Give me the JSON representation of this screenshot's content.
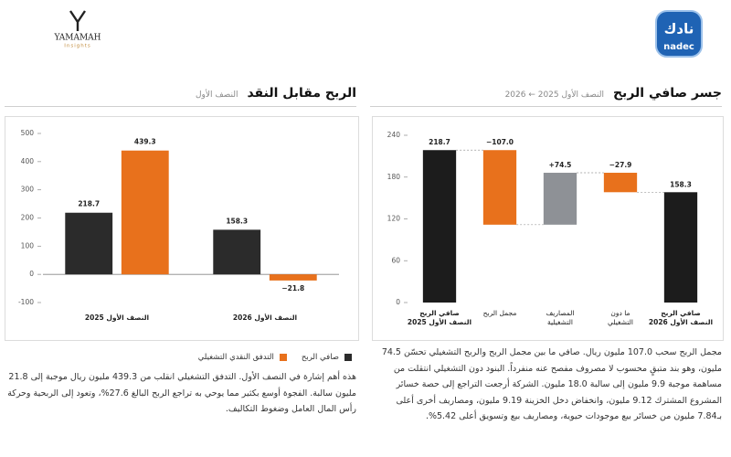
{
  "logos": {
    "yamamah": "YAMAMAH",
    "yamamah_sub": "Insights",
    "nadec": "nadec",
    "nadec_ar": "نادك"
  },
  "chart_data": [
    {
      "type": "waterfall",
      "title": "جسر صافي الربح",
      "subtitle": "النصف الأول 2025 ← 2026",
      "categories": [
        "صافي الربح\nالنصف الأول 2025",
        "مجمل الربح",
        "المصاريف\nالتشغيلية",
        "ما دون\nالتشغيلي",
        "صافي الربح\nالنصف الأول 2026"
      ],
      "values": [
        218.7,
        -107.0,
        74.5,
        -27.9,
        158.3
      ],
      "value_labels": [
        "218.7",
        "−107.0",
        "+74.5",
        "−27.9",
        "158.3"
      ],
      "measure": [
        "absolute",
        "relative",
        "relative",
        "relative",
        "absolute"
      ],
      "colors": [
        "#1c1c1c",
        "#e8711c",
        "#8e9196",
        "#e8711c",
        "#1c1c1c"
      ],
      "ylim": [
        0,
        240
      ],
      "yticks": [
        0,
        60,
        120,
        180,
        240
      ],
      "grid": false,
      "caption": "مجمل الربح سحب 107.0 مليون ريال. صافي ما بين مجمل الربح والربح التشغيلي تحسّن 74.5 مليون، وهو بند متبقٍ محسوب لا مصروف مفصح عنه منفرداً. البنود دون التشغيلي انتقلت من مساهمة موجبة 9.9 مليون إلى سالبة 18.0 مليون. الشركة أرجعت التراجع إلى حصة خسائر المشروع المشترك 9.12 مليون، وانخفاض دخل الخزينة 9.19 مليون، ومصاريف أخرى أعلى بـ7.84 مليون من خسائر بيع موجودات حيوية، ومصاريف بيع وتسويق أعلى 5.42%."
    },
    {
      "type": "bar",
      "title": "الربح مقابل النقد",
      "subtitle": "النصف الأول",
      "categories": [
        "النصف الأول 2025",
        "النصف الأول 2026"
      ],
      "series": [
        {
          "name": "صافي الربح",
          "color": "#2b2b2b",
          "values": [
            218.7,
            158.3
          ]
        },
        {
          "name": "التدفق النقدي التشغيلي",
          "color": "#e8711c",
          "values": [
            439.3,
            -21.8
          ],
          "value_labels": [
            "439.3",
            "−21.8"
          ]
        }
      ],
      "ylim": [
        -100,
        500
      ],
      "yticks": [
        -100,
        0,
        100,
        200,
        300,
        400,
        500
      ],
      "grid": false,
      "caption": "هذه أهم إشارة في النصف الأول. التدفق التشغيلي انقلب من 439.3 مليون ريال موجبة إلى 21.8 مليون سالبة. الفجوة أوسع بكثير مما يوحي به تراجع الربح البالغ 27.6%، وتعود إلى الربحية وحركة رأس المال العامل وضغوط التكاليف."
    }
  ]
}
